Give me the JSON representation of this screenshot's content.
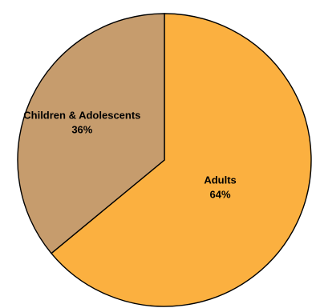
{
  "chart_data": {
    "type": "pie",
    "title": "",
    "slices": [
      {
        "label": "Adults",
        "value": 64,
        "value_label": "64%",
        "color": "#FBB040"
      },
      {
        "label": "Children & Adolescents",
        "value": 36,
        "value_label": "36%",
        "color": "#C69C6D"
      }
    ],
    "start_angle_deg": 0,
    "direction": "clockwise",
    "legend": "none"
  }
}
